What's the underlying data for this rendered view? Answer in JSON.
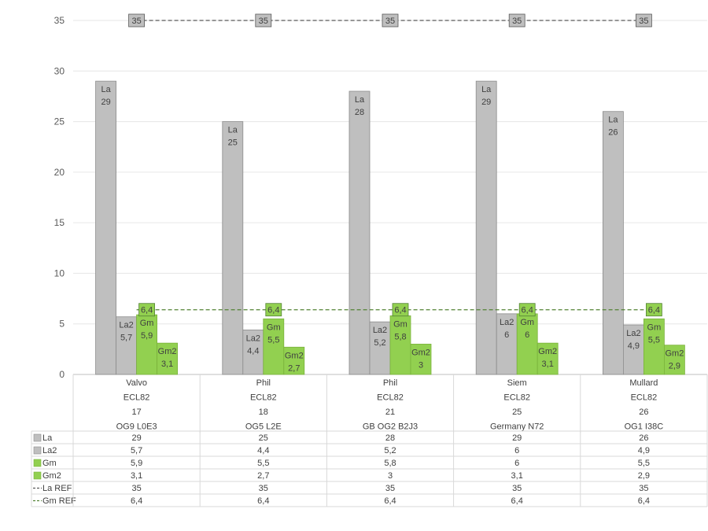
{
  "chart_data": {
    "type": "bar",
    "ylim": [
      0,
      35
    ],
    "yticks": [
      0,
      5,
      10,
      15,
      20,
      25,
      30,
      35
    ],
    "grid": true,
    "legend": "table-left",
    "categories": [
      [
        "Valvo",
        "ECL82",
        "17",
        "OG9 L0E3"
      ],
      [
        "Phil",
        "ECL82",
        "18",
        "OG5 L2E"
      ],
      [
        "Phil",
        "ECL82",
        "21",
        "GB OG2 B2J3"
      ],
      [
        "Siem",
        "ECL82",
        "25",
        "Germany N72"
      ],
      [
        "Mullard",
        "ECL82",
        "26",
        "OG1 I38C"
      ]
    ],
    "series": [
      {
        "name": "La",
        "type": "bar",
        "values": [
          29,
          25,
          28,
          29,
          26
        ],
        "display": [
          "29",
          "25",
          "28",
          "29",
          "26"
        ],
        "color": "#bfbfbf"
      },
      {
        "name": "La2",
        "type": "bar",
        "values": [
          5.7,
          4.4,
          5.2,
          6,
          4.9
        ],
        "display": [
          "5,7",
          "4,4",
          "5,2",
          "6",
          "4,9"
        ],
        "color": "#bfbfbf"
      },
      {
        "name": "Gm",
        "type": "bar",
        "values": [
          5.9,
          5.5,
          5.8,
          6,
          5.5
        ],
        "display": [
          "5,9",
          "5,5",
          "5,8",
          "6",
          "5,5"
        ],
        "color": "#92d050"
      },
      {
        "name": "Gm2",
        "type": "bar",
        "values": [
          3.1,
          2.7,
          3,
          3.1,
          2.9
        ],
        "display": [
          "3,1",
          "2,7",
          "3",
          "3,1",
          "2,9"
        ],
        "color": "#92d050"
      },
      {
        "name": "La REF",
        "type": "line",
        "values": [
          35,
          35,
          35,
          35,
          35
        ],
        "display": [
          "35",
          "35",
          "35",
          "35",
          "35"
        ],
        "color": "#595959"
      },
      {
        "name": "Gm REF",
        "type": "line",
        "values": [
          6.4,
          6.4,
          6.4,
          6.4,
          6.4
        ],
        "display": [
          "6,4",
          "6,4",
          "6,4",
          "6,4",
          "6,4"
        ],
        "color": "#548235"
      }
    ]
  }
}
